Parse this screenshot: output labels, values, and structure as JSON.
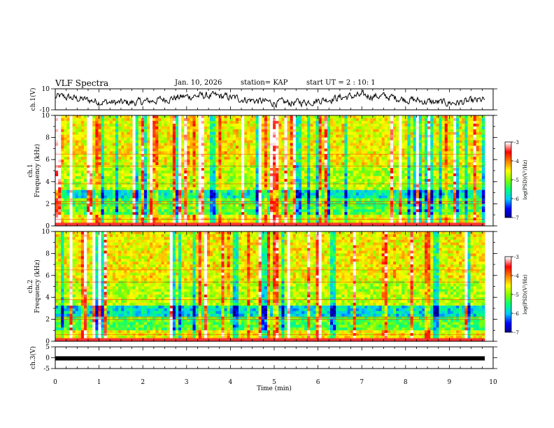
{
  "header": {
    "title": "VLF Spectra",
    "date": "Jan. 10, 2026",
    "station": "station= KAP",
    "start_ut": "start UT =  2 : 10: 1"
  },
  "chart_data": [
    {
      "type": "line",
      "name": "ch1-waveform",
      "ylabel": "ch.1(V)",
      "ylim": [
        -10,
        10
      ],
      "ytick_labels": [
        "10",
        "-10"
      ],
      "xlim": [
        0,
        10
      ],
      "description_values": "noisy waveform oscillating roughly between -6 and 6 V",
      "series": [
        {
          "name": "ch.1",
          "y_range": [
            -6,
            6
          ]
        }
      ]
    },
    {
      "type": "heatmap",
      "name": "ch1-spectrogram",
      "ylabel": "ch.1\nFrequency (kHz)",
      "ylabel_lines": [
        "ch.1",
        "Frequency  (kHz)"
      ],
      "ylim": [
        0,
        10
      ],
      "ytick_labels": [
        "0",
        "2",
        "4",
        "6",
        "8",
        "10"
      ],
      "xlim": [
        0,
        9.8
      ],
      "colorbar": {
        "label": "log(PSD)(V²/Hz)",
        "range": [
          -7,
          -3
        ],
        "tick_labels": [
          "-3",
          "-4",
          "-5",
          "-6",
          "-7"
        ]
      }
    },
    {
      "type": "heatmap",
      "name": "ch2-spectrogram",
      "ylabel": "ch.2\nFrequency (kHz)",
      "ylabel_lines": [
        "ch.2",
        "Frequency  (kHz)"
      ],
      "ylim": [
        0,
        10
      ],
      "ytick_labels": [
        "0",
        "2",
        "4",
        "6",
        "8",
        "10"
      ],
      "xlim": [
        0,
        9.8
      ],
      "colorbar": {
        "label": "log(PSD)(V²/Hz)",
        "range": [
          -7,
          -3
        ],
        "tick_labels": [
          "-3",
          "-4",
          "-5",
          "-6",
          "-7"
        ]
      }
    },
    {
      "type": "line",
      "name": "ch3-waveform",
      "ylabel": "ch.3(V)",
      "ylim": [
        -5,
        5
      ],
      "ytick_labels": [
        "5",
        "0",
        "-5"
      ],
      "xlim": [
        0,
        10
      ],
      "series": [
        {
          "name": "ch.3",
          "value": -0.3
        }
      ]
    }
  ],
  "xaxis": {
    "label": "Time  (min)",
    "tick_labels": [
      "0",
      "1",
      "2",
      "3",
      "4",
      "5",
      "6",
      "7",
      "8",
      "9",
      "10"
    ],
    "range": [
      0,
      10
    ]
  },
  "colors": {
    "ink": "#000000",
    "cmap": [
      "#00008b",
      "#0000ff",
      "#00c8ff",
      "#00ff80",
      "#80ff00",
      "#ffff00",
      "#ff8000",
      "#ff0000",
      "#ffffff"
    ]
  }
}
